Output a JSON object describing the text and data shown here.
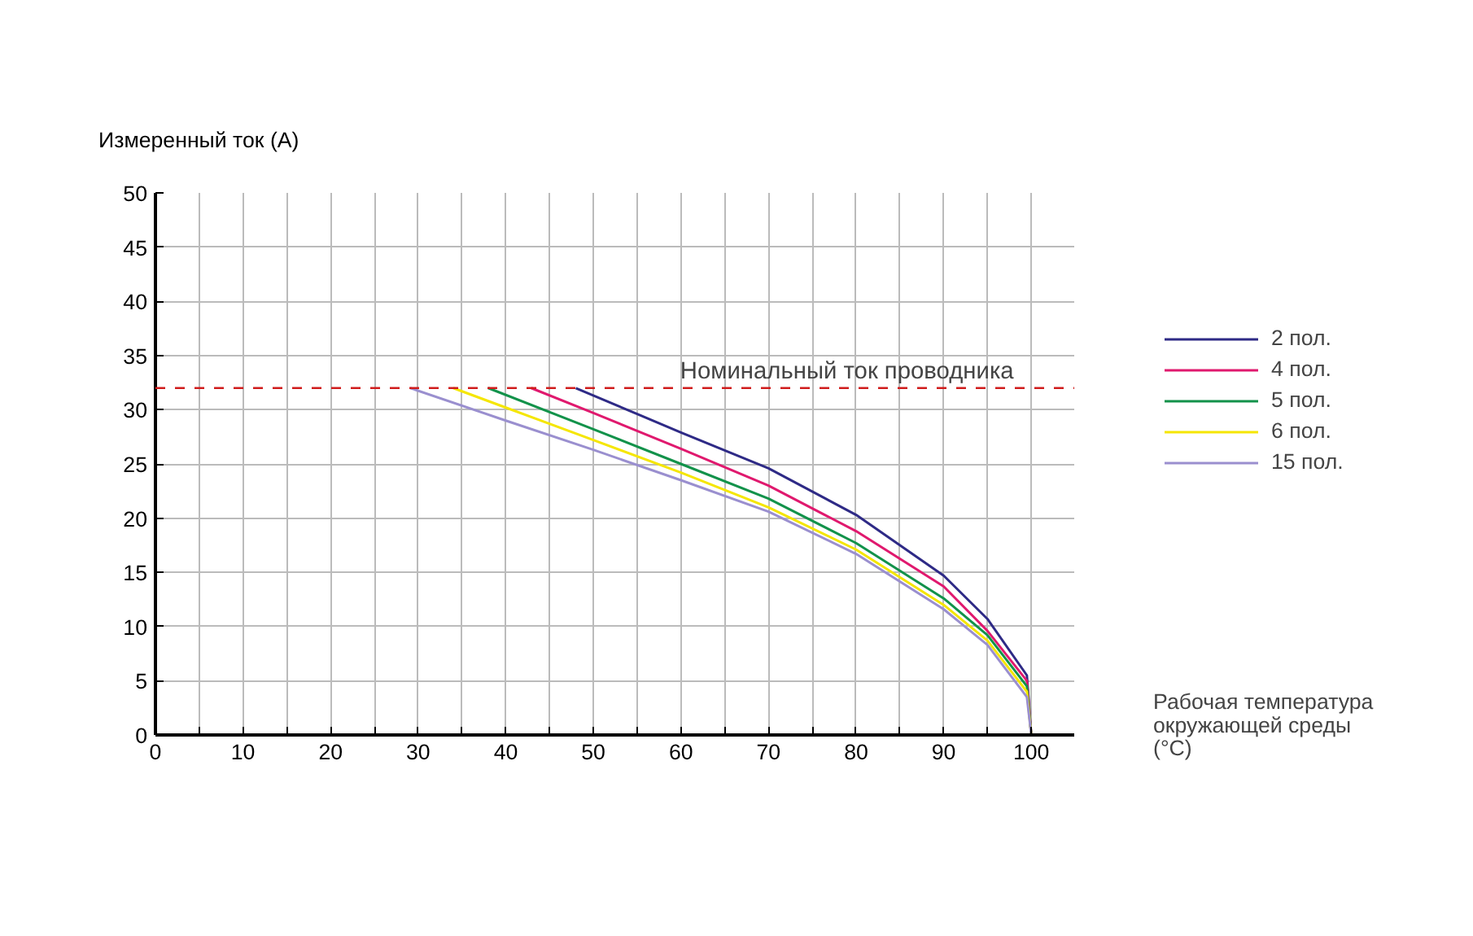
{
  "chart_data": {
    "type": "line",
    "ylabel": "Измеренный ток (A)",
    "xlabel": "Рабочая температура окружающей среды (°C)",
    "xlim": [
      0,
      105
    ],
    "ylim": [
      0,
      50
    ],
    "xticks": [
      0,
      {
        "value": 5,
        "label": null
      },
      10,
      {
        "value": 15,
        "label": null
      },
      20,
      {
        "value": 25,
        "label": null
      },
      30,
      {
        "value": 35,
        "label": null
      },
      40,
      {
        "value": 45,
        "label": null
      },
      50,
      {
        "value": 55,
        "label": null
      },
      60,
      {
        "value": 65,
        "label": null
      },
      70,
      {
        "value": 75,
        "label": null
      },
      80,
      {
        "value": 85,
        "label": null
      },
      90,
      {
        "value": 95,
        "label": null
      },
      100
    ],
    "yticks": [
      0,
      5,
      10,
      15,
      20,
      25,
      30,
      35,
      40,
      45,
      50
    ],
    "grid": true,
    "legend": "right",
    "marker": "none",
    "line_style": "solid",
    "ref_lines": [
      {
        "axis": "y",
        "value": 32,
        "label": "Номинальный ток проводника",
        "color": "#d01c1c",
        "line_style": "dashed"
      }
    ],
    "series": [
      {
        "name": "2 пол.",
        "color": "#2e2a86",
        "x": [
          48,
          60,
          70,
          80,
          90,
          95,
          99.5,
          100
        ],
        "values": [
          32,
          27.9,
          24.6,
          20.3,
          14.7,
          10.7,
          5.5,
          0
        ]
      },
      {
        "name": "4 пол.",
        "color": "#e0196e",
        "x": [
          42.9,
          50,
          60,
          70,
          80,
          90,
          95,
          99.5,
          100
        ],
        "values": [
          32,
          29.7,
          26.4,
          23.0,
          18.8,
          13.7,
          9.6,
          5.0,
          0
        ]
      },
      {
        "name": "5 пол.",
        "color": "#12924a",
        "x": [
          38,
          50,
          60,
          70,
          80,
          90,
          95,
          99.5,
          100
        ],
        "values": [
          32,
          28.2,
          25.0,
          21.8,
          17.7,
          12.6,
          9.2,
          4.5,
          0
        ]
      },
      {
        "name": "6 пол.",
        "color": "#f5e600",
        "x": [
          34,
          40,
          50,
          60,
          70,
          80,
          90,
          95,
          99.5,
          100
        ],
        "values": [
          32,
          30.2,
          27.2,
          24.2,
          21.0,
          17.1,
          12.0,
          8.7,
          4.0,
          0
        ]
      },
      {
        "name": "15 пол.",
        "color": "#9a8fcf",
        "x": [
          29.1,
          40,
          50,
          60,
          70,
          80,
          90,
          95,
          99.5,
          100
        ],
        "values": [
          32,
          29.0,
          26.3,
          23.5,
          20.6,
          16.7,
          11.6,
          8.3,
          3.5,
          0
        ]
      }
    ]
  }
}
